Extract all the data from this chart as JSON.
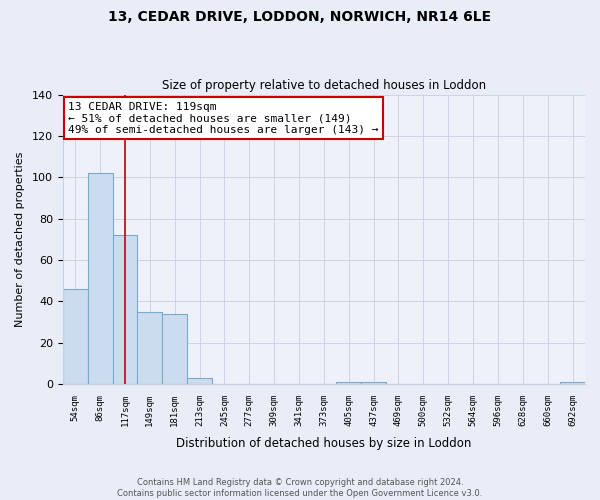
{
  "title": "13, CEDAR DRIVE, LODDON, NORWICH, NR14 6LE",
  "subtitle": "Size of property relative to detached houses in Loddon",
  "xlabel": "Distribution of detached houses by size in Loddon",
  "ylabel": "Number of detached properties",
  "footer_line1": "Contains HM Land Registry data © Crown copyright and database right 2024.",
  "footer_line2": "Contains public sector information licensed under the Open Government Licence v3.0.",
  "categories": [
    "54sqm",
    "86sqm",
    "117sqm",
    "149sqm",
    "181sqm",
    "213sqm",
    "245sqm",
    "277sqm",
    "309sqm",
    "341sqm",
    "373sqm",
    "405sqm",
    "437sqm",
    "469sqm",
    "500sqm",
    "532sqm",
    "564sqm",
    "596sqm",
    "628sqm",
    "660sqm",
    "692sqm"
  ],
  "values": [
    46,
    102,
    72,
    35,
    34,
    3,
    0,
    0,
    0,
    0,
    0,
    1,
    1,
    0,
    0,
    0,
    0,
    0,
    0,
    0,
    1
  ],
  "bar_color": "#ccdcef",
  "bar_edge_color": "#7aaacc",
  "highlight_bar_index": 2,
  "highlight_line_color": "#cc0000",
  "ylim": [
    0,
    140
  ],
  "yticks": [
    0,
    20,
    40,
    60,
    80,
    100,
    120,
    140
  ],
  "annotation_title": "13 CEDAR DRIVE: 119sqm",
  "annotation_line1": "← 51% of detached houses are smaller (149)",
  "annotation_line2": "49% of semi-detached houses are larger (143) →",
  "background_color": "#e8edf8",
  "plot_bg_color": "#eef1fa",
  "grid_color": "#c8cfe0"
}
